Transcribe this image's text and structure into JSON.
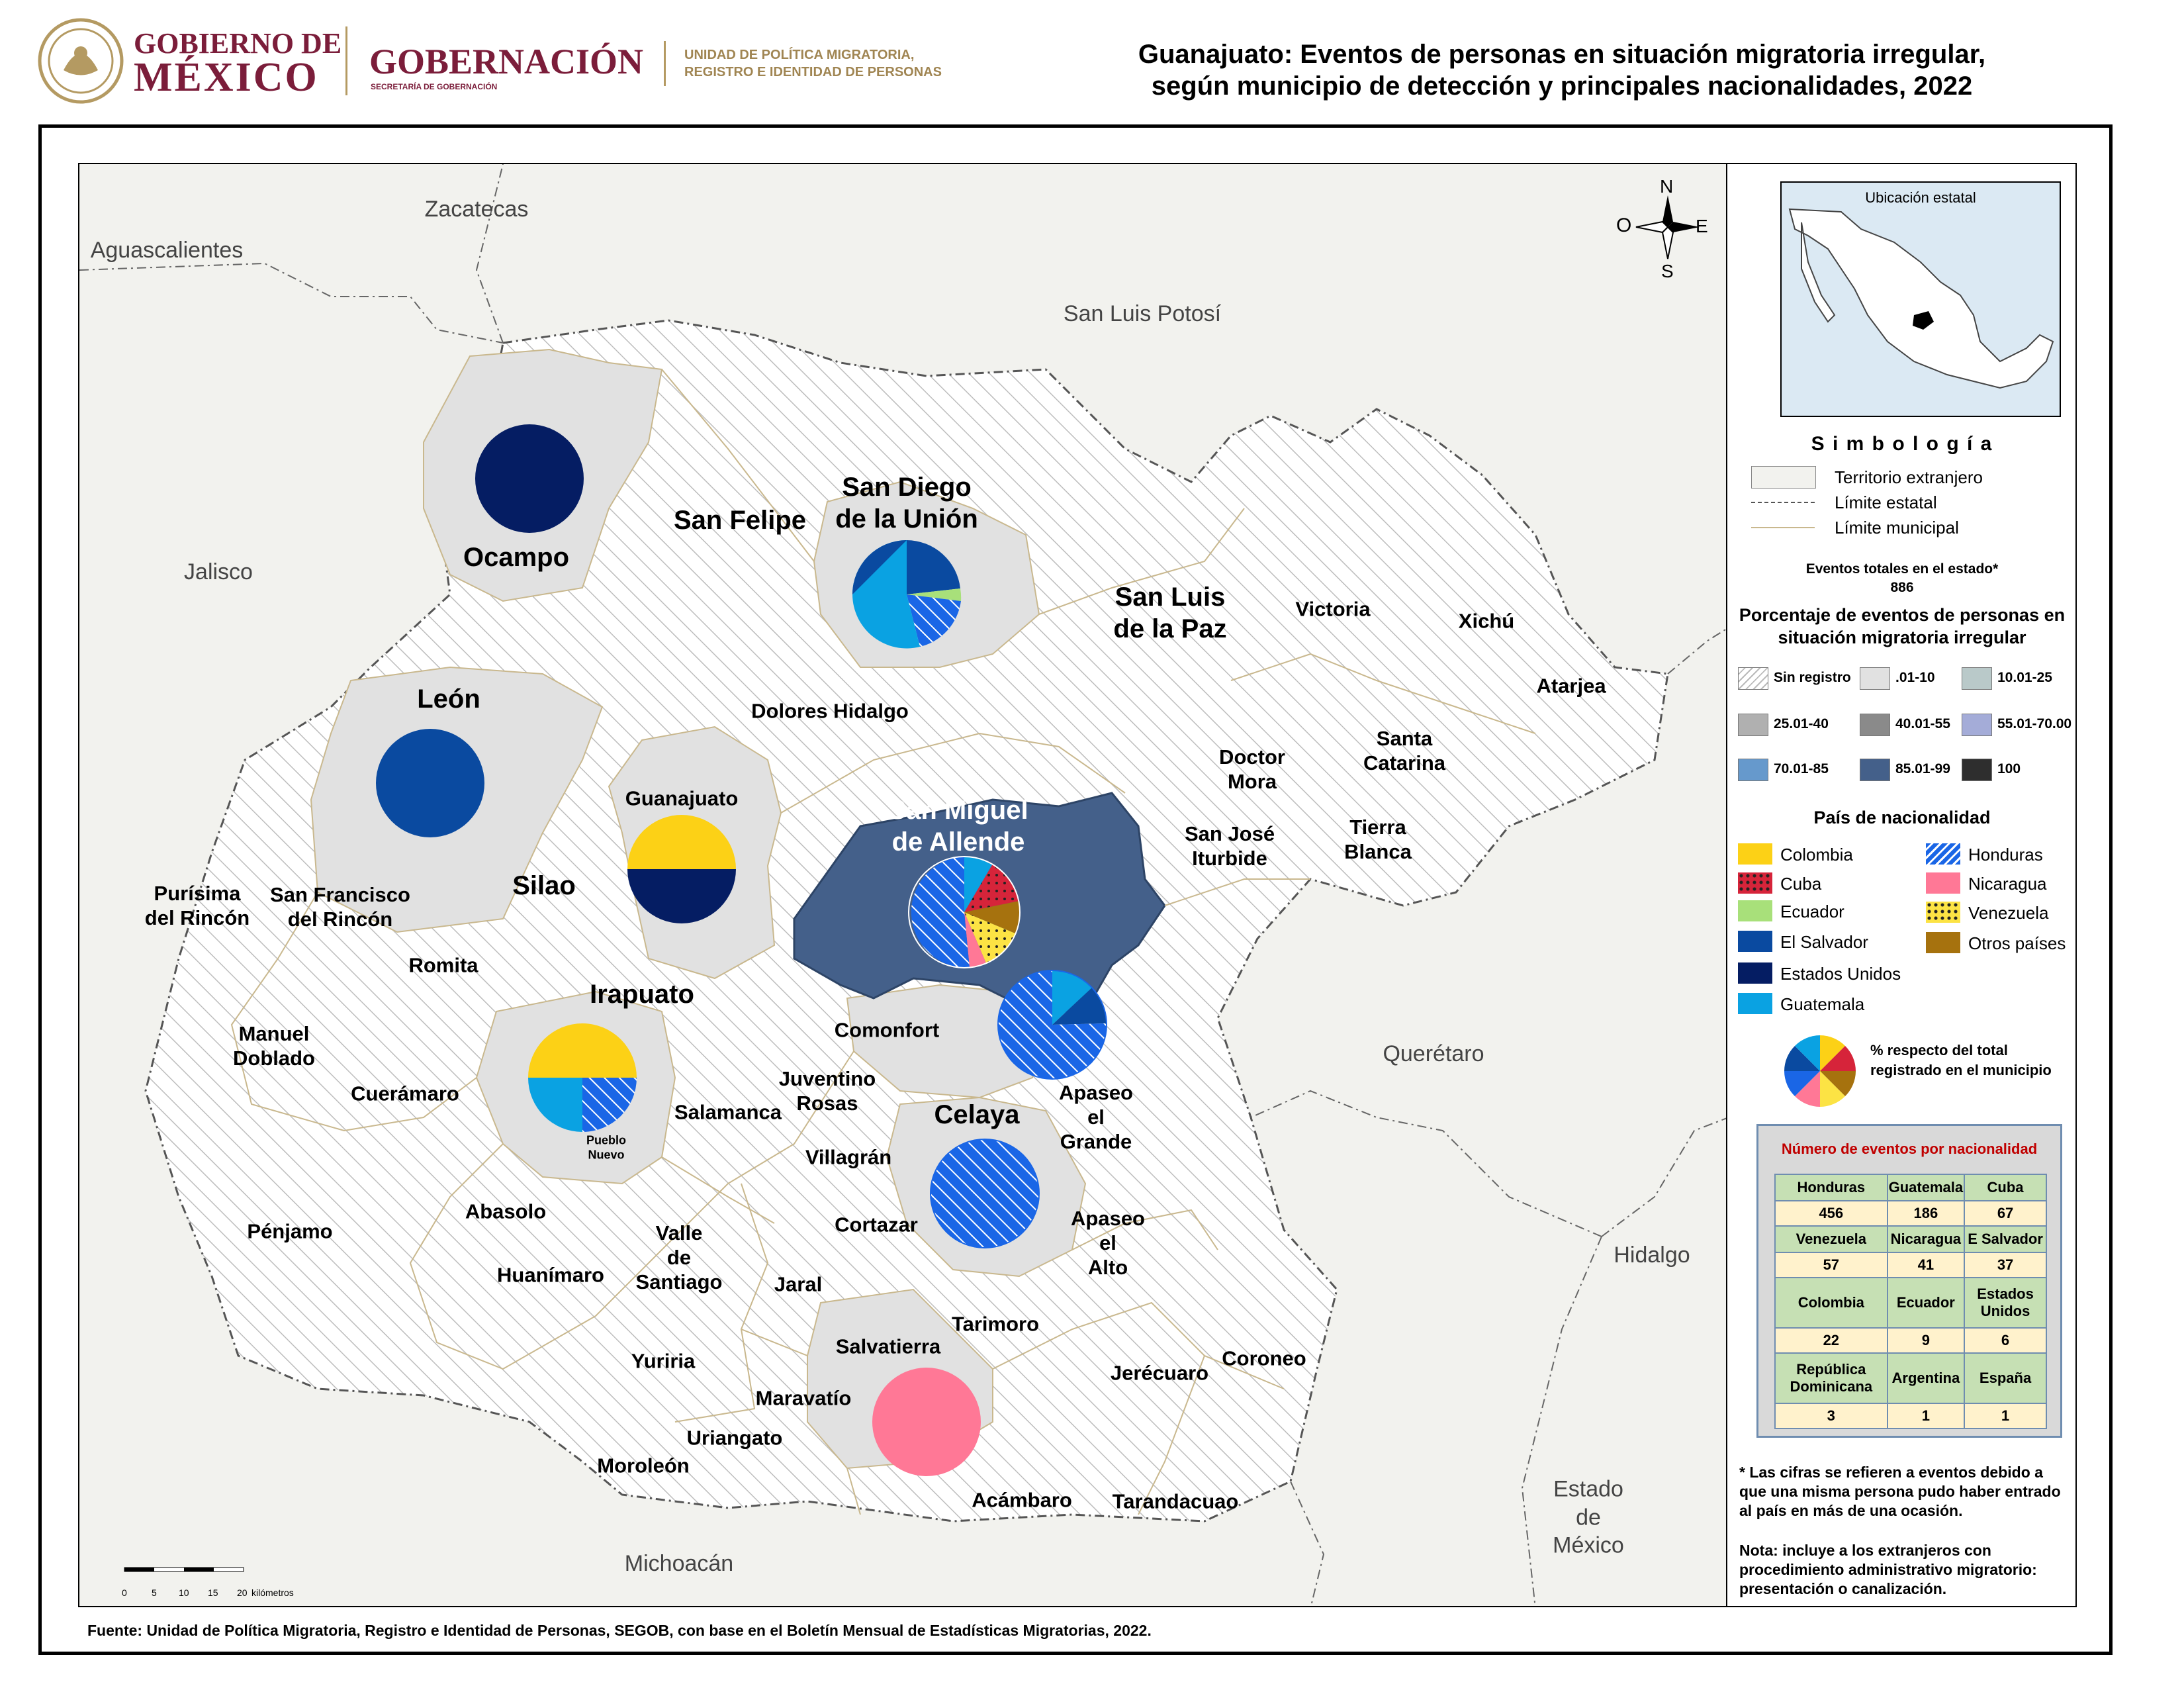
{
  "header": {
    "gob_line1": "GOBIERNO DE",
    "gob_line2": "MÉXICO",
    "gobernacion": "GOBERNACIÓN",
    "gobernacion_sub": "SECRETARÍA DE GOBERNACIÓN",
    "unidad_line1": "UNIDAD DE POLÍTICA MIGRATORIA,",
    "unidad_line2": "REGISTRO E IDENTIDAD DE PERSONAS",
    "title_line1": "Guanajuato: Eventos de personas en situación migratoria irregular,",
    "title_line2": "según municipio de detección y principales nacionalidades, 2022"
  },
  "states": {
    "zacatecas": "Zacatecas",
    "aguascalientes": "Aguascalientes",
    "slp": "San Luis Potosí",
    "jalisco": "Jalisco",
    "queretaro": "Querétaro",
    "hidalgo": "Hidalgo",
    "michoacan": "Michoacán",
    "edomex_1": "Estado",
    "edomex_2": "de",
    "edomex_3": "México"
  },
  "municipalities": {
    "ocampo": "Ocampo",
    "san_felipe": "San Felipe",
    "san_diego_1": "San Diego",
    "san_diego_2": "de la Unión",
    "san_luis_1": "San Luis",
    "san_luis_2": "de la Paz",
    "victoria": "Victoria",
    "xichu": "Xichú",
    "atarjea": "Atarjea",
    "leon": "León",
    "dolores": "Dolores Hidalgo",
    "guanajuato": "Guanajuato",
    "doctor_1": "Doctor",
    "doctor_2": "Mora",
    "santa_cat_1": "Santa",
    "santa_cat_2": "Catarina",
    "sma_1": "San Miguel",
    "sma_2": "de Allende",
    "sji_1": "San José",
    "sji_2": "Iturbide",
    "tierra_1": "Tierra",
    "tierra_2": "Blanca",
    "purisima_1": "Purísima",
    "purisima_2": "del Rincón",
    "sfr_1": "San Francisco",
    "sfr_2": "del Rincón",
    "silao": "Silao",
    "romita": "Romita",
    "irapuato": "Irapuato",
    "comonfort": "Comonfort",
    "manuel_1": "Manuel",
    "manuel_2": "Doblado",
    "cueramaro": "Cuerámaro",
    "juventino_1": "Juventino",
    "juventino_2": "Rosas",
    "salamanca": "Salamanca",
    "celaya": "Celaya",
    "apaseo_g_1": "Apaseo",
    "apaseo_g_2": "el",
    "apaseo_g_3": "Grande",
    "pueblo_1": "Pueblo",
    "pueblo_2": "Nuevo",
    "villagran": "Villagrán",
    "abasolo": "Abasolo",
    "penjamo": "Pénjamo",
    "valle_1": "Valle",
    "valle_2": "de",
    "valle_3": "Santiago",
    "cortazar": "Cortazar",
    "apaseo_a_1": "Apaseo",
    "apaseo_a_2": "el",
    "apaseo_a_3": "Alto",
    "huanimaro": "Huanímaro",
    "jaral": "Jaral",
    "tarimoro": "Tarimoro",
    "salvatierra": "Salvatierra",
    "yuriria": "Yuriria",
    "coroneo": "Coroneo",
    "jerecuaro": "Jerécuaro",
    "maravatio": "Maravatío",
    "uriangato": "Uriangato",
    "moroleon": "Moroleón",
    "acambaro": "Acámbaro",
    "tarandacuao": "Tarandacuao"
  },
  "compass": {
    "n": "N",
    "s": "S",
    "e": "E",
    "o": "O"
  },
  "scale": {
    "ticks": [
      "0",
      "5",
      "10",
      "15",
      "20"
    ],
    "unit": "kilómetros"
  },
  "footer": "Fuente: Unidad de Política Migratoria, Registro e Identidad de Personas, SEGOB, con base en el Boletín Mensual de Estadísticas Migratorias, 2022.",
  "legend": {
    "inset_title": "Ubicación estatal",
    "simbologia": "S i m b o l o g í a",
    "sym_extranjero": "Territorio extranjero",
    "sym_estatal": "Límite estatal",
    "sym_municipal": "Límite municipal",
    "total_label": "Eventos totales en el estado*",
    "total_value": "886",
    "pct_title_1": "Porcentaje de eventos de personas en",
    "pct_title_2": "situación migratoria irregular",
    "classes": [
      {
        "label": "Sin registro",
        "color": "hatch"
      },
      {
        "label": ".01-10",
        "color": "#e1e1e1"
      },
      {
        "label": "10.01-25",
        "color": "#b9c9c9"
      },
      {
        "label": "25.01-40",
        "color": "#b0b0b0"
      },
      {
        "label": "40.01-55",
        "color": "#8a8a8a"
      },
      {
        "label": "55.01-70.00",
        "color": "#a4acd8"
      },
      {
        "label": "70.01-85",
        "color": "#6699cc"
      },
      {
        "label": "85.01-99",
        "color": "#44608a"
      },
      {
        "label": "100",
        "color": "#2e2e2e"
      }
    ],
    "nat_title": "País de nacionalidad",
    "nationalities": [
      {
        "label": "Colombia",
        "color": "#fcd116",
        "pattern": "solid"
      },
      {
        "label": "Honduras",
        "color": "#1a66e6",
        "pattern": "hatch"
      },
      {
        "label": "Cuba",
        "color": "#d6243a",
        "pattern": "dots"
      },
      {
        "label": "Nicaragua",
        "color": "#ff7896",
        "pattern": "solid"
      },
      {
        "label": "Ecuador",
        "color": "#a8e07a",
        "pattern": "solid"
      },
      {
        "label": "Venezuela",
        "color": "#fce344",
        "pattern": "dots"
      },
      {
        "label": "El Salvador",
        "color": "#0a4aa0",
        "pattern": "solid"
      },
      {
        "label": "Otros países",
        "color": "#a6720e",
        "pattern": "solid"
      },
      {
        "label": "Estados Unidos",
        "color": "#051d63",
        "pattern": "solid"
      },
      {
        "label": "Guatemala",
        "color": "#0aa2e2",
        "pattern": "solid"
      }
    ],
    "pie_note_1": "%  respecto del total",
    "pie_note_2": "registrado en el municipio",
    "table_title": "Número de eventos por nacionalidad",
    "table_rows": [
      [
        {
          "h": "Honduras",
          "v": "456"
        },
        {
          "h": "Guatemala",
          "v": "186"
        },
        {
          "h": "Cuba",
          "v": "67"
        }
      ],
      [
        {
          "h": "Venezuela",
          "v": "57"
        },
        {
          "h": "Nicaragua",
          "v": "41"
        },
        {
          "h": "E Salvador",
          "v": "37"
        }
      ],
      [
        {
          "h": "Colombia",
          "v": "22"
        },
        {
          "h": "Ecuador",
          "v": "9"
        },
        {
          "h": "Estados Unidos",
          "v": "6"
        }
      ],
      [
        {
          "h": "República Dominicana",
          "v": "3"
        },
        {
          "h": "Argentina",
          "v": "1"
        },
        {
          "h": "España",
          "v": "1"
        }
      ]
    ],
    "note1": "* Las cifras se refieren a eventos debido a que una misma persona pudo haber entrado al país en más de una ocasión.",
    "note2": "Nota: incluye a los extranjeros con procedimiento administrativo migratorio: presentación o canalización."
  }
}
